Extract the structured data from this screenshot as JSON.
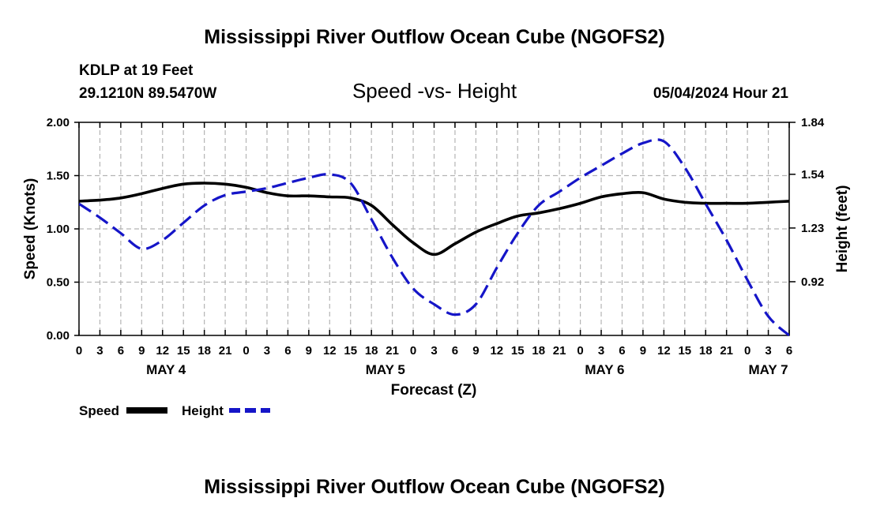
{
  "page": {
    "title_top": "Mississippi River Outflow Ocean Cube (NGOFS2)",
    "title_bottom": "Mississippi River Outflow Ocean Cube (NGOFS2)",
    "station": "KDLP at 19 Feet",
    "coords": "29.1210N  89.5470W",
    "run_time": "05/04/2024 Hour 21"
  },
  "colors": {
    "speed": "#000000",
    "height": "#1515c8",
    "grid": "#b4b4b4"
  },
  "chart_data": {
    "type": "line",
    "title": "Speed -vs- Height",
    "xlabel": "Forecast (Z)",
    "ylabel": "Speed (Knots)",
    "ylabel_right": "Height (feet)",
    "xlim": [
      0,
      102
    ],
    "ylim": [
      0,
      2.0
    ],
    "ylim_right": [
      0.61,
      1.84
    ],
    "x_ticks": [
      0,
      3,
      6,
      9,
      12,
      15,
      18,
      21,
      24,
      27,
      30,
      33,
      36,
      39,
      42,
      45,
      48,
      51,
      54,
      57,
      60,
      63,
      66,
      69,
      72,
      75,
      78,
      81,
      84,
      87,
      90,
      93,
      96,
      99,
      102
    ],
    "x_tick_labels": [
      "0",
      "3",
      "6",
      "9",
      "12",
      "15",
      "18",
      "21",
      "0",
      "3",
      "6",
      "9",
      "12",
      "15",
      "18",
      "21",
      "0",
      "3",
      "6",
      "9",
      "12",
      "15",
      "18",
      "21",
      "0",
      "3",
      "6",
      "9",
      "12",
      "15",
      "18",
      "21",
      "0",
      "3",
      "6"
    ],
    "day_labels": [
      {
        "x": 12.5,
        "label": "MAY 4"
      },
      {
        "x": 44,
        "label": "MAY 5"
      },
      {
        "x": 75.5,
        "label": "MAY 6"
      },
      {
        "x": 99,
        "label": "MAY 7"
      }
    ],
    "y_ticks": [
      0.0,
      0.5,
      1.0,
      1.5,
      2.0
    ],
    "y_tick_labels": [
      "0.00",
      "0.50",
      "1.00",
      "1.50",
      "2.00"
    ],
    "y_ticks_right": [
      0.92,
      1.23,
      1.54,
      1.84
    ],
    "y_tick_labels_right": [
      "0.92",
      "1.23",
      "1.54",
      "1.84"
    ],
    "series": [
      {
        "name": "Speed",
        "axis": "left",
        "x": [
          0,
          3,
          6,
          9,
          12,
          15,
          18,
          21,
          24,
          27,
          30,
          33,
          36,
          39,
          42,
          45,
          48,
          51,
          54,
          57,
          60,
          63,
          66,
          69,
          72,
          75,
          78,
          81,
          84,
          87,
          90,
          93,
          96,
          99,
          102
        ],
        "values": [
          1.26,
          1.27,
          1.29,
          1.33,
          1.38,
          1.42,
          1.43,
          1.42,
          1.39,
          1.34,
          1.31,
          1.31,
          1.3,
          1.29,
          1.22,
          1.04,
          0.87,
          0.76,
          0.86,
          0.97,
          1.05,
          1.12,
          1.15,
          1.19,
          1.24,
          1.3,
          1.33,
          1.34,
          1.28,
          1.25,
          1.24,
          1.24,
          1.24,
          1.25,
          1.26
        ]
      },
      {
        "name": "Height",
        "axis": "right",
        "x": [
          0,
          3,
          6,
          9,
          12,
          15,
          18,
          21,
          24,
          27,
          30,
          33,
          36,
          39,
          42,
          45,
          48,
          51,
          54,
          57,
          60,
          63,
          66,
          69,
          72,
          75,
          78,
          81,
          84,
          87,
          90,
          93,
          96,
          99,
          102
        ],
        "values": [
          1.37,
          1.29,
          1.2,
          1.11,
          1.16,
          1.26,
          1.36,
          1.42,
          1.44,
          1.46,
          1.49,
          1.52,
          1.54,
          1.49,
          1.28,
          1.06,
          0.88,
          0.79,
          0.73,
          0.79,
          1.0,
          1.2,
          1.36,
          1.44,
          1.52,
          1.59,
          1.66,
          1.72,
          1.73,
          1.58,
          1.37,
          1.16,
          0.93,
          0.72,
          0.61
        ]
      }
    ],
    "legend": [
      {
        "label": "Speed",
        "series": "Speed"
      },
      {
        "label": "Height",
        "series": "Height"
      }
    ],
    "legend_position": "bottom-left",
    "grid": true
  }
}
